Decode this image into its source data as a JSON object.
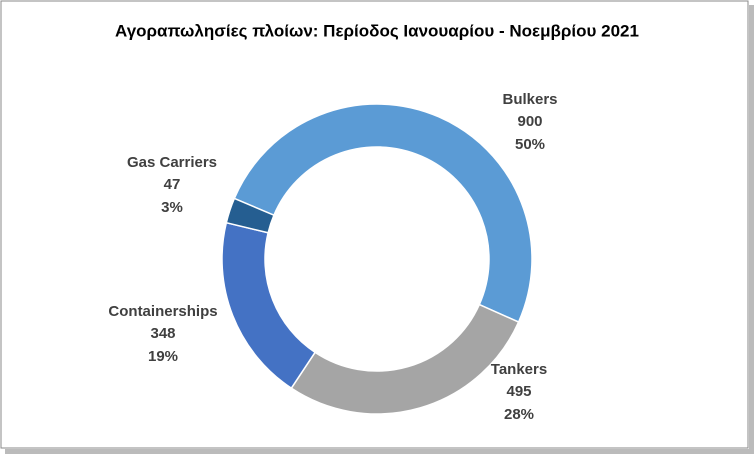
{
  "chart_data": {
    "type": "doughnut",
    "title": "Αγοραπωλησίες πλοίων: Περίοδος Ιανουαρίου - Νοεμβρίου 2021",
    "categories": [
      "Bulkers",
      "Tankers",
      "Containerships",
      "Gas Carriers"
    ],
    "values": [
      900,
      495,
      348,
      47
    ],
    "percent_labels": [
      "50%",
      "28%",
      "19%",
      "3%"
    ],
    "colors": [
      "#5b9bd5",
      "#a5a5a5",
      "#4472c4",
      "#255e91"
    ]
  }
}
